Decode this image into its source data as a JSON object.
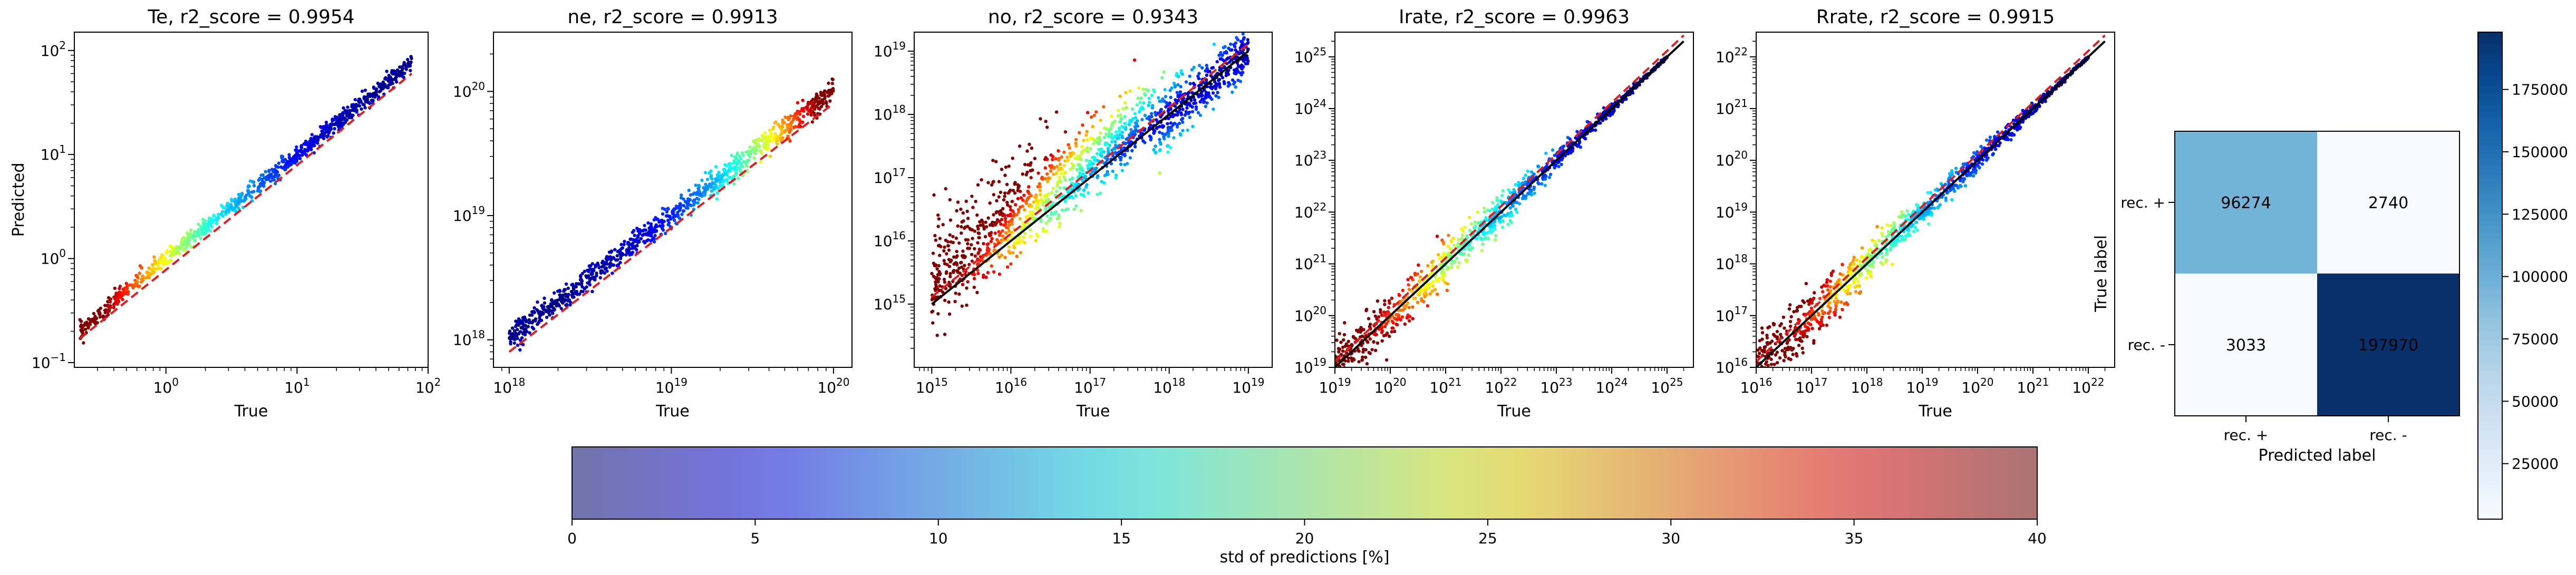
{
  "chart_data": [
    {
      "type": "scatter",
      "title": "Te, r2_score = 0.9954",
      "xlabel": "True",
      "ylabel": "Predicted",
      "xscale": "log",
      "yscale": "log",
      "xlim": [
        0.2,
        100
      ],
      "ylim": [
        0.09,
        150
      ],
      "xticks": [
        {
          "v": 1,
          "base": "10",
          "exp": "0"
        },
        {
          "v": 10,
          "base": "10",
          "exp": "1"
        },
        {
          "v": 100,
          "base": "10",
          "exp": "2"
        }
      ],
      "yticks": [
        {
          "v": 0.1,
          "base": "10",
          "exp": "−1"
        },
        {
          "v": 1,
          "base": "10",
          "exp": "0"
        },
        {
          "v": 10,
          "base": "10",
          "exp": "1"
        },
        {
          "v": 100,
          "base": "10",
          "exp": "2"
        }
      ],
      "series": [
        {
          "style": "points",
          "color_by": "std of predictions [%]",
          "x": [
            0.22,
            0.3,
            0.5,
            1,
            2,
            5,
            10,
            20,
            50,
            75
          ],
          "y": [
            0.2,
            0.27,
            0.5,
            1,
            2,
            5,
            10,
            20,
            50,
            80
          ],
          "spread": 0.04,
          "hi_std_end": "low",
          "noise": "low"
        },
        {
          "style": "red-dashed",
          "x": [
            0.22,
            75
          ],
          "y": [
            0.17,
            60
          ]
        }
      ]
    },
    {
      "type": "scatter",
      "title": "ne, r2_score = 0.9913",
      "xlabel": "True",
      "ylabel": "",
      "xscale": "log",
      "yscale": "log",
      "xlim": [
        8e+17,
        1.3e+20
      ],
      "ylim": [
        6e+17,
        3e+20
      ],
      "xticks": [
        {
          "v": 1e+18,
          "base": "10",
          "exp": "18"
        },
        {
          "v": 1e+19,
          "base": "10",
          "exp": "19"
        },
        {
          "v": 1e+20,
          "base": "10",
          "exp": "20"
        }
      ],
      "yticks": [
        {
          "v": 1e+18,
          "base": "10",
          "exp": "18"
        },
        {
          "v": 1e+19,
          "base": "10",
          "exp": "19"
        },
        {
          "v": 1e+20,
          "base": "10",
          "exp": "20"
        }
      ],
      "series": [
        {
          "style": "points",
          "color_by": "std of predictions [%]",
          "x": [
            1e+18,
            3e+18,
            1e+19,
            3e+19,
            1e+20
          ],
          "y": [
            1.05e+18,
            3e+18,
            1e+19,
            3e+19,
            1e+20
          ],
          "spread": 0.05,
          "hi_std_end": "high",
          "noise": "low"
        },
        {
          "style": "red-dashed",
          "x": [
            1e+18,
            1e+20
          ],
          "y": [
            8e+17,
            8e+19
          ]
        }
      ]
    },
    {
      "type": "scatter",
      "title": "no, r2_score = 0.9343",
      "xlabel": "True",
      "ylabel": "",
      "xscale": "log",
      "yscale": "log",
      "xlim": [
        600000000000000.0,
        2e+19
      ],
      "ylim": [
        100000000000000.0,
        2e+19
      ],
      "xticks": [
        {
          "v": 1000000000000000.0,
          "base": "10",
          "exp": "15"
        },
        {
          "v": 1e+16,
          "base": "10",
          "exp": "16"
        },
        {
          "v": 1e+17,
          "base": "10",
          "exp": "17"
        },
        {
          "v": 1e+18,
          "base": "10",
          "exp": "18"
        },
        {
          "v": 1e+19,
          "base": "10",
          "exp": "19"
        }
      ],
      "yticks": [
        {
          "v": 1000000000000000.0,
          "base": "10",
          "exp": "15"
        },
        {
          "v": 1e+16,
          "base": "10",
          "exp": "16"
        },
        {
          "v": 1e+17,
          "base": "10",
          "exp": "17"
        },
        {
          "v": 1e+18,
          "base": "10",
          "exp": "18"
        },
        {
          "v": 1e+19,
          "base": "10",
          "exp": "19"
        }
      ],
      "series": [
        {
          "style": "points",
          "color_by": "std of predictions [%]",
          "x": [
            1000000000000000.0,
            1e+16,
            1e+17,
            1e+18,
            1e+19
          ],
          "y": [
            1000000000000000.0,
            1e+16,
            1e+17,
            1e+18,
            1e+19
          ],
          "spread": 0.55,
          "hi_std_end": "low",
          "noise": "high"
        },
        {
          "style": "black-line",
          "x": [
            1000000000000000.0,
            1e+19
          ],
          "y": [
            1000000000000000.0,
            1e+19
          ]
        },
        {
          "style": "red-dashed",
          "x": [
            1000000000000000.0,
            1e+19
          ],
          "y": [
            1300000000000000.0,
            1.3e+19
          ]
        }
      ]
    },
    {
      "type": "scatter",
      "title": "Irate, r2_score = 0.9963",
      "xlabel": "True",
      "ylabel": "",
      "xscale": "log",
      "yscale": "log",
      "xlim": [
        1e+19,
        3e+25
      ],
      "ylim": [
        1e+19,
        3e+25
      ],
      "xticks": [
        {
          "v": 1e+19,
          "base": "10",
          "exp": "19"
        },
        {
          "v": 1e+20,
          "base": "10",
          "exp": "20"
        },
        {
          "v": 1e+21,
          "base": "10",
          "exp": "21"
        },
        {
          "v": 1e+22,
          "base": "10",
          "exp": "22"
        },
        {
          "v": 1e+23,
          "base": "10",
          "exp": "23"
        },
        {
          "v": 1e+24,
          "base": "10",
          "exp": "24"
        },
        {
          "v": 1e+25,
          "base": "10",
          "exp": "25"
        }
      ],
      "yticks": [
        {
          "v": 1e+19,
          "base": "10",
          "exp": "19"
        },
        {
          "v": 1e+20,
          "base": "10",
          "exp": "20"
        },
        {
          "v": 1e+21,
          "base": "10",
          "exp": "21"
        },
        {
          "v": 1e+22,
          "base": "10",
          "exp": "22"
        },
        {
          "v": 1e+23,
          "base": "10",
          "exp": "23"
        },
        {
          "v": 1e+24,
          "base": "10",
          "exp": "24"
        },
        {
          "v": 1e+25,
          "base": "10",
          "exp": "25"
        }
      ],
      "series": [
        {
          "style": "points",
          "color_by": "std of predictions [%]",
          "x": [
            1e+19,
            1e+21,
            1e+23,
            1e+25
          ],
          "y": [
            1e+19,
            1e+21,
            1e+23,
            1e+25
          ],
          "spread": 0.3,
          "hi_std_end": "low",
          "noise": "mid"
        },
        {
          "style": "black-line",
          "x": [
            1e+19,
            2e+25
          ],
          "y": [
            1e+19,
            2e+25
          ]
        },
        {
          "style": "red-dashed",
          "x": [
            1e+19,
            2e+25
          ],
          "y": [
            1.3e+19,
            2.6e+25
          ]
        }
      ]
    },
    {
      "type": "scatter",
      "title": "Rrate, r2_score = 0.9915",
      "xlabel": "True",
      "ylabel": "",
      "xscale": "log",
      "yscale": "log",
      "xlim": [
        1e+16,
        3e+22
      ],
      "ylim": [
        1e+16,
        3e+22
      ],
      "xticks": [
        {
          "v": 1e+16,
          "base": "10",
          "exp": "16"
        },
        {
          "v": 1e+17,
          "base": "10",
          "exp": "17"
        },
        {
          "v": 1e+18,
          "base": "10",
          "exp": "18"
        },
        {
          "v": 1e+19,
          "base": "10",
          "exp": "19"
        },
        {
          "v": 1e+20,
          "base": "10",
          "exp": "20"
        },
        {
          "v": 1e+21,
          "base": "10",
          "exp": "21"
        },
        {
          "v": 1e+22,
          "base": "10",
          "exp": "22"
        }
      ],
      "yticks": [
        {
          "v": 1e+16,
          "base": "10",
          "exp": "16"
        },
        {
          "v": 1e+17,
          "base": "10",
          "exp": "17"
        },
        {
          "v": 1e+18,
          "base": "10",
          "exp": "18"
        },
        {
          "v": 1e+19,
          "base": "10",
          "exp": "19"
        },
        {
          "v": 1e+20,
          "base": "10",
          "exp": "20"
        },
        {
          "v": 1e+21,
          "base": "10",
          "exp": "21"
        },
        {
          "v": 1e+22,
          "base": "10",
          "exp": "22"
        }
      ],
      "series": [
        {
          "style": "points",
          "color_by": "std of predictions [%]",
          "x": [
            1e+16,
            1e+18,
            1e+20,
            1e+22
          ],
          "y": [
            1e+16,
            1e+18,
            1e+20,
            1e+22
          ],
          "spread": 0.3,
          "hi_std_end": "low",
          "noise": "mid"
        },
        {
          "style": "black-line",
          "x": [
            1e+16,
            2e+22
          ],
          "y": [
            1e+16,
            2e+22
          ]
        },
        {
          "style": "red-dashed",
          "x": [
            1e+16,
            2e+22
          ],
          "y": [
            1.3e+16,
            2.6e+22
          ]
        }
      ]
    },
    {
      "type": "heatmap",
      "title": "",
      "xlabel": "Predicted label",
      "ylabel": "True label",
      "x_categories": [
        "rec. +",
        "rec. -"
      ],
      "y_categories": [
        "rec. +",
        "rec. -"
      ],
      "values": [
        [
          96274,
          2740
        ],
        [
          3033,
          197970
        ]
      ],
      "colormap": "Blues",
      "colorbar": {
        "min": 2740,
        "max": 197970,
        "ticks": [
          25000,
          50000,
          75000,
          100000,
          125000,
          150000,
          175000
        ],
        "tick_labels": [
          "25000",
          "50000",
          "75000",
          "100000",
          "125000",
          "150000",
          "175000"
        ]
      }
    }
  ],
  "colorbar": {
    "label": "std of predictions [%]",
    "min": 0,
    "max": 40,
    "ticks": [
      0,
      5,
      10,
      15,
      20,
      25,
      30,
      35,
      40
    ],
    "tick_labels": [
      "0",
      "5",
      "10",
      "15",
      "20",
      "25",
      "30",
      "35",
      "40"
    ],
    "colormap": "jet",
    "alpha": 0.5
  }
}
